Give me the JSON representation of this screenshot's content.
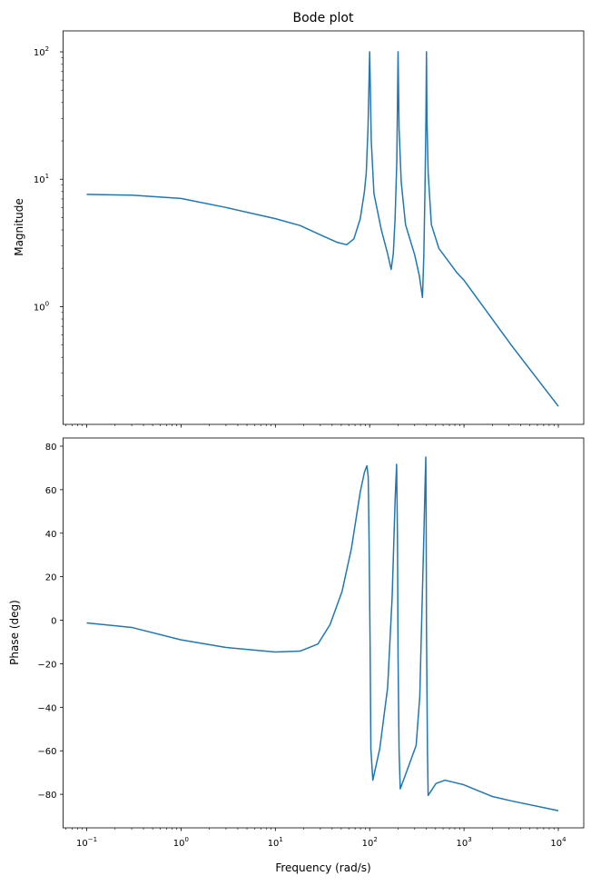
{
  "chart_data": [
    {
      "type": "line",
      "title": "Bode plot",
      "ylabel": "Magnitude",
      "xlabel": "",
      "xscale": "log",
      "yscale": "log",
      "xlim": [
        0.0562,
        18600
      ],
      "ylim": [
        0.119,
        146
      ],
      "xticks": [
        0.1,
        1,
        10,
        100,
        1000,
        10000
      ],
      "xtick_labels_visible": false,
      "yticks": [
        1,
        10,
        100
      ],
      "color": "#1f77b4",
      "grid": false,
      "points": [
        [
          0.1,
          7.6
        ],
        [
          0.3,
          7.5
        ],
        [
          1,
          7.07
        ],
        [
          3,
          6.0
        ],
        [
          10,
          4.9
        ],
        [
          18.3,
          4.33
        ],
        [
          30,
          3.66
        ],
        [
          45,
          3.2
        ],
        [
          57,
          3.06
        ],
        [
          68,
          3.4
        ],
        [
          79.5,
          4.9
        ],
        [
          88,
          8
        ],
        [
          92,
          11.2
        ],
        [
          96,
          25
        ],
        [
          100,
          100
        ],
        [
          104,
          20
        ],
        [
          111,
          7.7
        ],
        [
          133,
          4.0
        ],
        [
          155,
          2.6
        ],
        [
          169,
          1.96
        ],
        [
          178,
          2.6
        ],
        [
          186,
          4.9
        ],
        [
          194,
          14
        ],
        [
          200,
          100
        ],
        [
          205,
          25
        ],
        [
          216,
          9.5
        ],
        [
          240,
          4.4
        ],
        [
          300,
          2.55
        ],
        [
          336,
          1.75
        ],
        [
          363,
          1.18
        ],
        [
          375,
          2.5
        ],
        [
          386,
          8.5
        ],
        [
          395,
          30
        ],
        [
          400,
          100
        ],
        [
          405,
          30
        ],
        [
          417,
          11.2
        ],
        [
          451,
          4.4
        ],
        [
          542,
          2.86
        ],
        [
          844,
          1.84
        ],
        [
          1000,
          1.61
        ],
        [
          3162,
          0.5
        ],
        [
          10000,
          0.165
        ]
      ]
    },
    {
      "type": "line",
      "title": "",
      "ylabel": "Phase (deg)",
      "xlabel": "Frequency (rad/s)",
      "xscale": "log",
      "yscale": "linear",
      "xlim": [
        0.0562,
        18600
      ],
      "ylim": [
        -95.4,
        83.75
      ],
      "xticks": [
        0.1,
        1,
        10,
        100,
        1000,
        10000
      ],
      "yticks": [
        -80,
        -60,
        -40,
        -20,
        0,
        20,
        40,
        60,
        80
      ],
      "color": "#1f77b4",
      "grid": false,
      "points": [
        [
          0.1,
          -1.25
        ],
        [
          0.3,
          -3.3
        ],
        [
          1,
          -9
        ],
        [
          3,
          -12.5
        ],
        [
          10,
          -14.6
        ],
        [
          18.3,
          -14.2
        ],
        [
          28.3,
          -10.9
        ],
        [
          38,
          -2
        ],
        [
          51,
          13.3
        ],
        [
          64,
          32.9
        ],
        [
          79.5,
          59
        ],
        [
          88,
          68
        ],
        [
          93.5,
          71
        ],
        [
          96.5,
          66
        ],
        [
          98.5,
          38
        ],
        [
          101,
          -10
        ],
        [
          103,
          -59
        ],
        [
          108,
          -73.5
        ],
        [
          128,
          -59
        ],
        [
          155,
          -31
        ],
        [
          173,
          10.4
        ],
        [
          186,
          55
        ],
        [
          193,
          71.7
        ],
        [
          197,
          40
        ],
        [
          200,
          -17
        ],
        [
          205,
          -60
        ],
        [
          211,
          -77.5
        ],
        [
          259,
          -67
        ],
        [
          311,
          -57.5
        ],
        [
          340,
          -35
        ],
        [
          348,
          -17
        ],
        [
          375,
          38
        ],
        [
          388,
          65
        ],
        [
          394,
          75
        ],
        [
          397,
          50
        ],
        [
          400,
          -3
        ],
        [
          410,
          -60
        ],
        [
          417,
          -80.5
        ],
        [
          505,
          -75
        ],
        [
          628,
          -73.5
        ],
        [
          977,
          -75.5
        ],
        [
          2000,
          -81
        ],
        [
          3162,
          -83
        ],
        [
          10000,
          -87.5
        ]
      ]
    }
  ]
}
